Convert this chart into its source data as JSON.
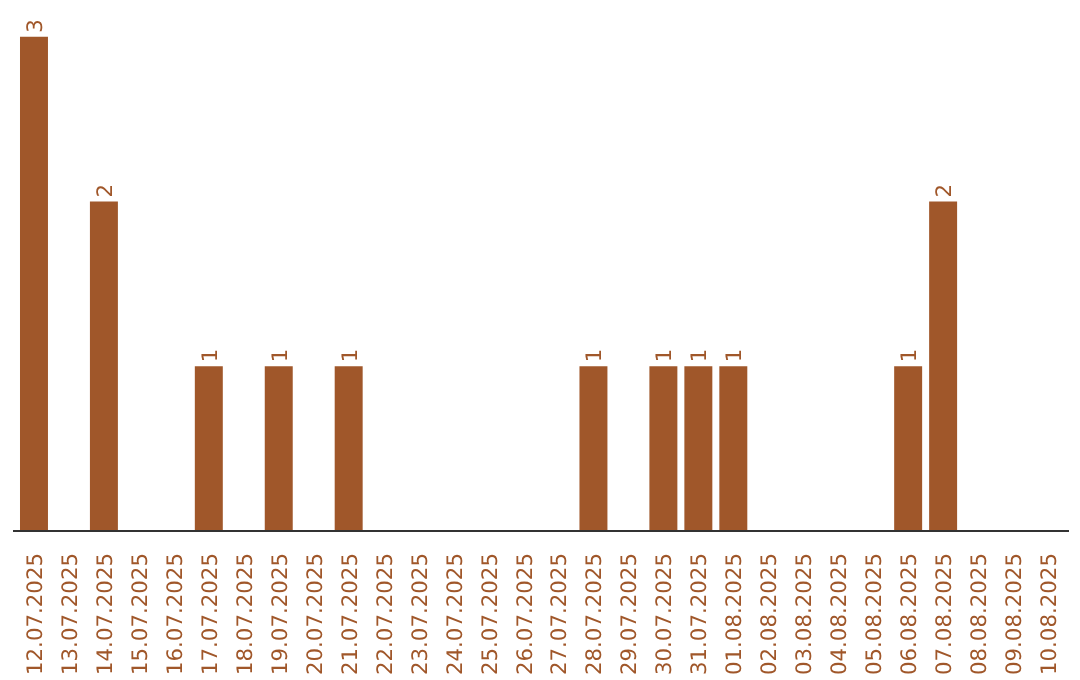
{
  "chart_data": {
    "type": "bar",
    "categories": [
      "12.07.2025",
      "13.07.2025",
      "14.07.2025",
      "15.07.2025",
      "16.07.2025",
      "17.07.2025",
      "18.07.2025",
      "19.07.2025",
      "20.07.2025",
      "21.07.2025",
      "22.07.2025",
      "23.07.2025",
      "24.07.2025",
      "25.07.2025",
      "26.07.2025",
      "27.07.2025",
      "28.07.2025",
      "29.07.2025",
      "30.07.2025",
      "31.07.2025",
      "01.08.2025",
      "02.08.2025",
      "03.08.2025",
      "04.08.2025",
      "05.08.2025",
      "06.08.2025",
      "07.08.2025",
      "08.08.2025",
      "09.08.2025",
      "10.08.2025"
    ],
    "values": [
      3,
      0,
      2,
      0,
      0,
      1,
      0,
      1,
      0,
      1,
      0,
      0,
      0,
      0,
      0,
      0,
      1,
      0,
      1,
      1,
      1,
      0,
      0,
      0,
      0,
      1,
      2,
      0,
      0,
      0
    ],
    "value_labels": [
      "3",
      null,
      "2",
      null,
      null,
      "1",
      null,
      "1",
      null,
      "1",
      null,
      null,
      null,
      null,
      null,
      null,
      "1",
      null,
      "1",
      "1",
      "1",
      null,
      null,
      null,
      null,
      "1",
      "2",
      null,
      null,
      null
    ],
    "color": "#a0572a",
    "grid": false
  }
}
